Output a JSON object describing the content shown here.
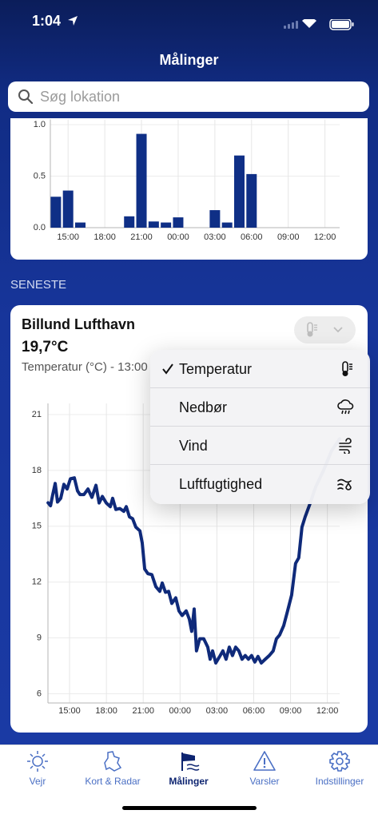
{
  "status_bar": {
    "time": "1:04"
  },
  "header": {
    "title": "Målinger"
  },
  "search": {
    "placeholder": "Søg lokation"
  },
  "section_label": "SENESTE",
  "station": {
    "name": "Billund Lufthavn",
    "temperature": "19,7°C",
    "caption": "Temperatur (°C) - 13:00"
  },
  "menu": {
    "items": [
      {
        "label": "Temperatur",
        "selected": true
      },
      {
        "label": "Nedbør",
        "selected": false
      },
      {
        "label": "Vind",
        "selected": false
      },
      {
        "label": "Luftfugtighed",
        "selected": false
      }
    ]
  },
  "tab_bar": {
    "tabs": [
      {
        "label": "Vejr",
        "active": false
      },
      {
        "label": "Kort & Radar",
        "active": false
      },
      {
        "label": "Målinger",
        "active": true
      },
      {
        "label": "Varsler",
        "active": false
      },
      {
        "label": "Indstillinger",
        "active": false
      }
    ]
  },
  "chart_data": [
    {
      "type": "bar",
      "x": [
        14,
        15,
        16,
        20,
        21,
        22,
        23,
        24,
        27,
        28,
        29,
        30
      ],
      "values": [
        0.3,
        0.36,
        0.05,
        0.11,
        0.91,
        0.06,
        0.05,
        0.1,
        0.17,
        0.05,
        0.7,
        0.52
      ],
      "color": "#0f2f86",
      "xlim": [
        13.55,
        37.2
      ],
      "ylim": [
        0,
        1.05
      ],
      "xticks": [
        {
          "value": 15,
          "label": "15:00"
        },
        {
          "value": 18,
          "label": "18:00"
        },
        {
          "value": 21,
          "label": "21:00"
        },
        {
          "value": 24,
          "label": "00:00"
        },
        {
          "value": 27,
          "label": "03:00"
        },
        {
          "value": 30,
          "label": "06:00"
        },
        {
          "value": 33,
          "label": "09:00"
        },
        {
          "value": 36,
          "label": "12:00"
        }
      ],
      "yticks": [
        {
          "value": 0,
          "label": "0.0"
        },
        0.5,
        {
          "value": 1,
          "label": "1.0"
        }
      ],
      "grid": true
    },
    {
      "type": "line",
      "x": [
        13.25,
        13.45,
        13.63,
        13.83,
        14.02,
        14.28,
        14.54,
        14.8,
        15.07,
        15.39,
        15.65,
        15.85,
        16.17,
        16.5,
        16.82,
        17.15,
        17.41,
        17.67,
        17.99,
        18.32,
        18.51,
        18.77,
        19.1,
        19.42,
        19.62,
        19.88,
        20.14,
        20.4,
        20.73,
        20.92,
        21.12,
        21.38,
        21.7,
        22.03,
        22.35,
        22.55,
        22.81,
        23.07,
        23.33,
        23.65,
        23.91,
        24.17,
        24.5,
        24.76,
        24.95,
        25.15,
        25.34,
        25.6,
        25.93,
        26.26,
        26.45,
        26.65,
        26.91,
        27.23,
        27.49,
        27.75,
        28.01,
        28.27,
        28.53,
        28.79,
        29.05,
        29.31,
        29.57,
        29.83,
        30.09,
        30.35,
        30.62,
        30.94,
        31.27,
        31.59,
        31.85,
        32.11,
        32.44,
        32.76,
        33.09,
        33.41,
        33.67,
        33.93,
        34.19,
        34.58,
        35.04,
        35.69,
        36.34,
        37.0
      ],
      "values": [
        16.26,
        16.1,
        16.7,
        17.3,
        16.3,
        16.5,
        17.25,
        17.0,
        17.55,
        17.6,
        16.9,
        16.7,
        16.7,
        17.0,
        16.55,
        17.2,
        16.25,
        16.6,
        16.25,
        16.05,
        16.5,
        15.9,
        15.95,
        15.8,
        16.05,
        15.5,
        15.4,
        14.95,
        14.75,
        14.1,
        12.7,
        12.45,
        12.4,
        11.75,
        11.5,
        11.95,
        11.45,
        11.5,
        10.85,
        11.15,
        10.45,
        10.2,
        10.45,
        10.0,
        9.35,
        10.55,
        8.3,
        8.95,
        8.95,
        8.5,
        7.85,
        8.3,
        7.65,
        8.0,
        8.3,
        7.85,
        8.5,
        8.05,
        8.5,
        8.3,
        7.85,
        8.05,
        7.85,
        8.05,
        7.7,
        8.0,
        7.65,
        7.85,
        8.05,
        8.3,
        8.95,
        9.15,
        9.65,
        10.45,
        11.3,
        13.0,
        13.3,
        14.95,
        15.5,
        16.2,
        17.1,
        18.0,
        19.05,
        19.7
      ],
      "color": "#0f2a7a",
      "xlim": [
        13.24,
        37.0
      ],
      "ylim": [
        5.5,
        21.6
      ],
      "xticks": [
        {
          "value": 15,
          "label": "15:00"
        },
        {
          "value": 18,
          "label": "18:00"
        },
        {
          "value": 21,
          "label": "21:00"
        },
        {
          "value": 24,
          "label": "00:00"
        },
        {
          "value": 27,
          "label": "03:00"
        },
        {
          "value": 30,
          "label": "06:00"
        },
        {
          "value": 33,
          "label": "09:00"
        },
        {
          "value": 36,
          "label": "12:00"
        }
      ],
      "yticks": [
        6,
        9,
        12,
        15,
        18,
        21
      ],
      "grid": true
    }
  ]
}
